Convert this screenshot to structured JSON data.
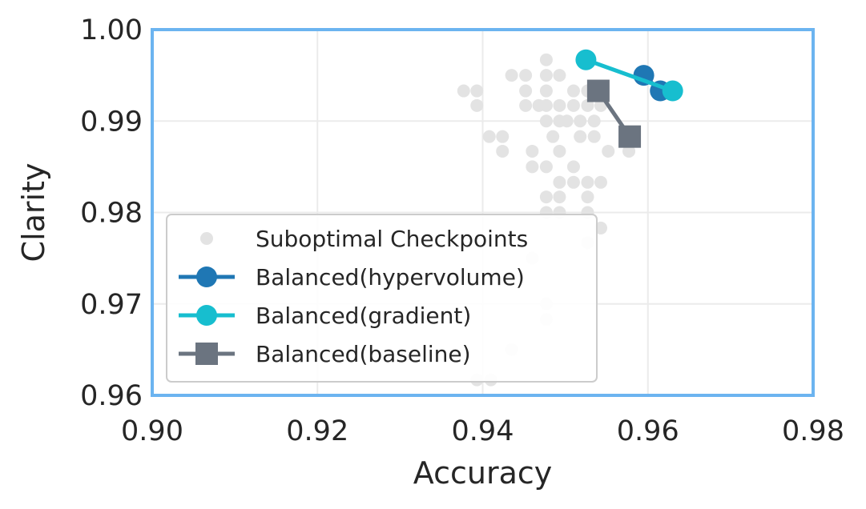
{
  "chart_data": {
    "type": "scatter",
    "title": "",
    "xlabel": "Accuracy",
    "ylabel": "Clarity",
    "xlim": [
      0.9,
      0.98
    ],
    "ylim": [
      0.96,
      1.0
    ],
    "xticks": [
      "0.90",
      "0.92",
      "0.94",
      "0.96",
      "0.98"
    ],
    "yticks": [
      "0.96",
      "0.97",
      "0.98",
      "0.99",
      "1.00"
    ],
    "grid": true,
    "legend_position": "lower-left",
    "colors": {
      "frame": "#6cb4f0",
      "grid": "#ebebeb",
      "suboptimal": "#e3e3e3",
      "hypervolume": "#1f77b4",
      "gradient": "#17becf",
      "baseline": "#6b7480"
    },
    "series": [
      {
        "name": "Suboptimal Checkpoints",
        "kind": "scatter",
        "marker": "circle",
        "points": [
          [
            0.9477,
            0.9967
          ],
          [
            0.9435,
            0.995
          ],
          [
            0.9452,
            0.995
          ],
          [
            0.9477,
            0.995
          ],
          [
            0.9493,
            0.995
          ],
          [
            0.9377,
            0.9933
          ],
          [
            0.9393,
            0.9933
          ],
          [
            0.9452,
            0.9933
          ],
          [
            0.9477,
            0.9933
          ],
          [
            0.951,
            0.9933
          ],
          [
            0.9527,
            0.9933
          ],
          [
            0.9393,
            0.9917
          ],
          [
            0.9452,
            0.9917
          ],
          [
            0.9468,
            0.9917
          ],
          [
            0.9477,
            0.9917
          ],
          [
            0.9493,
            0.9917
          ],
          [
            0.951,
            0.9917
          ],
          [
            0.9527,
            0.9917
          ],
          [
            0.9543,
            0.9917
          ],
          [
            0.9477,
            0.99
          ],
          [
            0.9493,
            0.99
          ],
          [
            0.9502,
            0.99
          ],
          [
            0.9518,
            0.99
          ],
          [
            0.9535,
            0.99
          ],
          [
            0.9408,
            0.9883
          ],
          [
            0.9424,
            0.9883
          ],
          [
            0.9485,
            0.9883
          ],
          [
            0.9518,
            0.9883
          ],
          [
            0.9535,
            0.9883
          ],
          [
            0.9424,
            0.9867
          ],
          [
            0.946,
            0.9867
          ],
          [
            0.9493,
            0.9867
          ],
          [
            0.9552,
            0.9867
          ],
          [
            0.9577,
            0.9867
          ],
          [
            0.946,
            0.985
          ],
          [
            0.9477,
            0.985
          ],
          [
            0.951,
            0.985
          ],
          [
            0.9493,
            0.9833
          ],
          [
            0.951,
            0.9833
          ],
          [
            0.9527,
            0.9833
          ],
          [
            0.9543,
            0.9833
          ],
          [
            0.9477,
            0.9817
          ],
          [
            0.9493,
            0.9817
          ],
          [
            0.9527,
            0.9817
          ],
          [
            0.9477,
            0.98
          ],
          [
            0.9493,
            0.98
          ],
          [
            0.9527,
            0.98
          ],
          [
            0.9543,
            0.9783
          ],
          [
            0.9527,
            0.9767
          ],
          [
            0.946,
            0.975
          ],
          [
            0.9477,
            0.97
          ],
          [
            0.9477,
            0.9683
          ],
          [
            0.9435,
            0.965
          ],
          [
            0.9393,
            0.9617
          ],
          [
            0.941,
            0.9617
          ]
        ]
      },
      {
        "name": "Balanced(hypervolume)",
        "kind": "line",
        "marker": "circle",
        "points": [
          [
            0.9595,
            0.995
          ],
          [
            0.9615,
            0.9933
          ]
        ]
      },
      {
        "name": "Balanced(gradient)",
        "kind": "line",
        "marker": "circle",
        "points": [
          [
            0.9525,
            0.9967
          ],
          [
            0.963,
            0.9933
          ]
        ]
      },
      {
        "name": "Balanced(baseline)",
        "kind": "line",
        "marker": "square",
        "points": [
          [
            0.954,
            0.9933
          ],
          [
            0.9578,
            0.9883
          ]
        ]
      }
    ]
  }
}
